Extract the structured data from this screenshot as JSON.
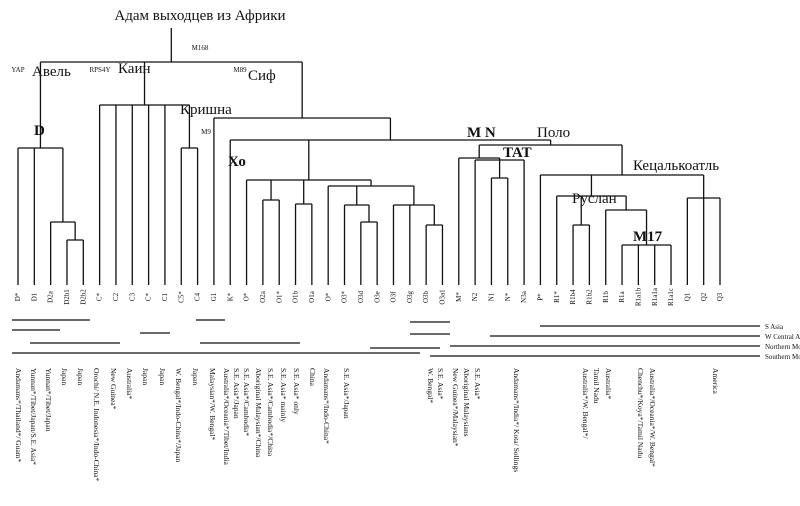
{
  "title": "Адам выходцев из Африки",
  "markers": {
    "root": "M168",
    "yap": "YAP",
    "rps4y": "RPS4Y",
    "m89": "M89",
    "m9": "M9"
  },
  "clades": {
    "abel": "Авель",
    "cain": "Каин",
    "seth": "Сиф",
    "krishna": "Кришна",
    "d": "D",
    "ho": "Хо",
    "mn": "M N",
    "polo": "Поло",
    "tat": "TAT",
    "quetzalcoatl": "Кецалькоатль",
    "ruslan": "Руслан",
    "m17": "M17"
  },
  "leaves": [
    "D*",
    "D1",
    "D2a",
    "D2b1",
    "D2b2",
    "C*",
    "C2",
    "C3",
    "C*",
    "C1",
    "C5*",
    "C4",
    "G1",
    "K*",
    "O*",
    "O2a",
    "O1*",
    "O1b",
    "O1a",
    "O*",
    "O3*",
    "O3d",
    "O3e",
    "O3f",
    "O3g",
    "O3b",
    "O3a1",
    "M*",
    "N2",
    "N1",
    "N*",
    "N3a",
    "P*",
    "R1*",
    "R1b4",
    "R1b2",
    "R1b",
    "R1a",
    "R1a1b",
    "R1a1a",
    "R1a1c",
    "Q1",
    "Q2",
    "Q3"
  ],
  "legend": [
    "S Asia",
    "W Central Asia",
    "Northern Mongoloid",
    "Southern Mongoloid"
  ],
  "populations": [
    "Andamans*/Thailand*/ Guam*",
    "Yunnan*/Tibet/Japan/S.E. Asia*",
    "Yunnan*/Tibet/Japan",
    "Japan",
    "Japan",
    "Orochi/ N.E. Indonesia*/Indo-China*",
    "New Guinea*",
    "Australia*",
    "Japan",
    "Japan",
    "W. Bengal*/Indo-China*/Japan",
    "Japan",
    "Malaysian*/W. Bengal*",
    "Australia*/Oceania*/Tibet/India",
    "S.E. Asia*/Japan",
    "S.E. Asia*/Cambodia*",
    "Aboriginal Malaysian*/China",
    "S.E. Asia*/Cambodia*/China",
    "S.E. Asia* mainly",
    "S.E. Asia* only",
    "China",
    "Andamans*/Indo-China*",
    "S.E. Asia*/Japan",
    "W. Bengal*",
    "S.E. Asia*",
    "New Guinea*/Malaysian*",
    "Aboriginal Malaysians",
    "S.E. Asia*",
    "Andamans*/India*/ Kota/ Sollings",
    "Australia*/W. Bengal*/",
    "Tamil Nadu",
    "Australia*",
    "Chenchu*/Koya*/Tamil Nadu",
    "Australia*/Oceania*/W. Bengal*",
    "America"
  ]
}
